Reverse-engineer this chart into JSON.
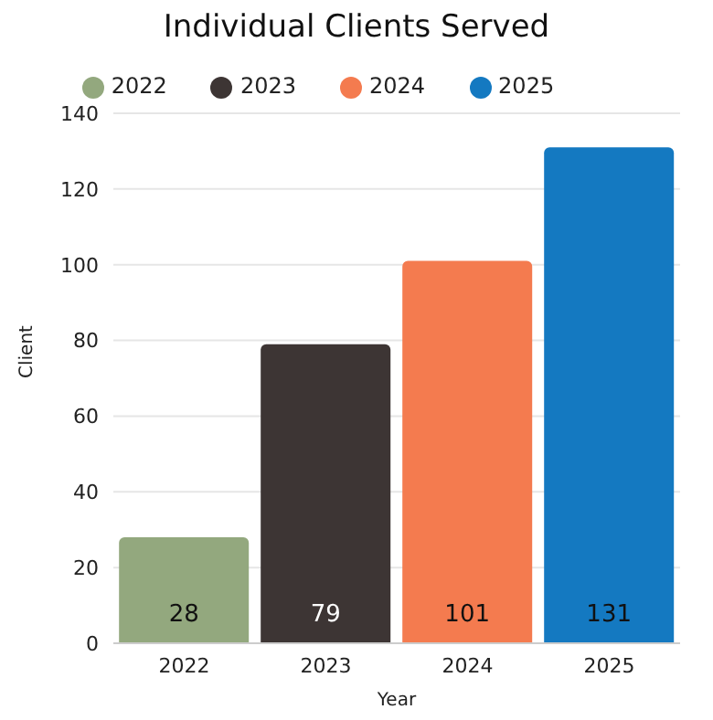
{
  "chart_data": {
    "type": "bar",
    "title": "Individual Clients Served",
    "xlabel": "Year",
    "ylabel": "Client",
    "categories": [
      "2022",
      "2023",
      "2024",
      "2025"
    ],
    "series": [
      {
        "name": "2022",
        "color": "#93a87e",
        "values": [
          28,
          null,
          null,
          null
        ]
      },
      {
        "name": "2023",
        "color": "#3d3534",
        "values": [
          null,
          79,
          null,
          null
        ]
      },
      {
        "name": "2024",
        "color": "#f47b4f",
        "values": [
          null,
          null,
          101,
          null
        ]
      },
      {
        "name": "2025",
        "color": "#1479c1",
        "values": [
          null,
          null,
          null,
          131
        ]
      }
    ],
    "stacked": true,
    "ylim": [
      0,
      140
    ],
    "yticks": [
      0,
      20,
      40,
      60,
      80,
      100,
      120,
      140
    ],
    "grid": "y",
    "legend": "top",
    "data_labels": true
  }
}
